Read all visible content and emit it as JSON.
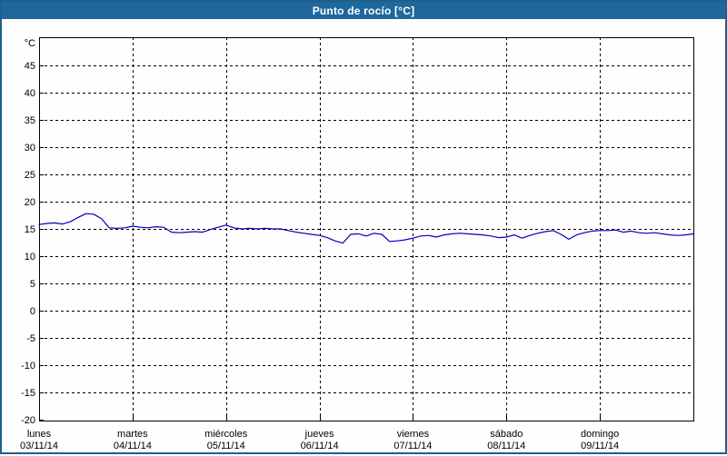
{
  "window": {
    "title": "Punto de rocío [°C]"
  },
  "colors": {
    "frame_border": "#1F5F8B",
    "titlebar_bg": "#1F689C",
    "title_text": "#FFFFFF",
    "plot_bg": "#FDFEFD",
    "grid": "#000000",
    "axis": "#000000",
    "label_text": "#000000",
    "line": "#0000BB"
  },
  "chart_data": {
    "type": "line",
    "title": "Punto de rocío [°C]",
    "ylabel": "°C",
    "xlabel": "",
    "ylim": [
      -20,
      50
    ],
    "y_ticks": [
      45,
      40,
      35,
      30,
      25,
      20,
      15,
      10,
      5,
      0,
      -5,
      -10,
      -15,
      -20
    ],
    "grid": "dashed",
    "legend_position": "none",
    "x_days": [
      {
        "name": "lunes",
        "date": "03/11/14"
      },
      {
        "name": "martes",
        "date": "04/11/14"
      },
      {
        "name": "miércoles",
        "date": "05/11/14"
      },
      {
        "name": "jueves",
        "date": "06/11/14"
      },
      {
        "name": "viernes",
        "date": "07/11/14"
      },
      {
        "name": "sábado",
        "date": "08/11/14"
      },
      {
        "name": "domingo",
        "date": "09/11/14"
      }
    ],
    "x_start_hour": 0,
    "x_step_hours": 2,
    "x_total_hours": 168,
    "series": [
      {
        "name": "Punto de rocío",
        "color": "#0000BB",
        "values": [
          15.8,
          16.0,
          16.1,
          15.9,
          16.3,
          17.1,
          17.8,
          17.7,
          16.9,
          15.2,
          15.1,
          15.2,
          15.5,
          15.3,
          15.2,
          15.4,
          15.3,
          14.4,
          14.3,
          14.4,
          14.5,
          14.4,
          14.9,
          15.3,
          15.7,
          15.2,
          15.0,
          15.1,
          15.0,
          15.1,
          15.0,
          15.0,
          14.7,
          14.4,
          14.2,
          14.0,
          13.8,
          13.4,
          12.8,
          12.4,
          14.0,
          14.1,
          13.7,
          14.2,
          14.0,
          12.7,
          12.8,
          13.0,
          13.3,
          13.7,
          13.8,
          13.5,
          13.9,
          14.1,
          14.2,
          14.1,
          14.0,
          13.9,
          13.7,
          13.4,
          13.5,
          13.9,
          13.3,
          13.8,
          14.2,
          14.5,
          14.7,
          14.0,
          13.1,
          13.9,
          14.3,
          14.6,
          14.7,
          14.7,
          14.8,
          14.4,
          14.6,
          14.3,
          14.2,
          14.3,
          14.1,
          13.9,
          13.8,
          13.9,
          14.1
        ]
      }
    ]
  }
}
